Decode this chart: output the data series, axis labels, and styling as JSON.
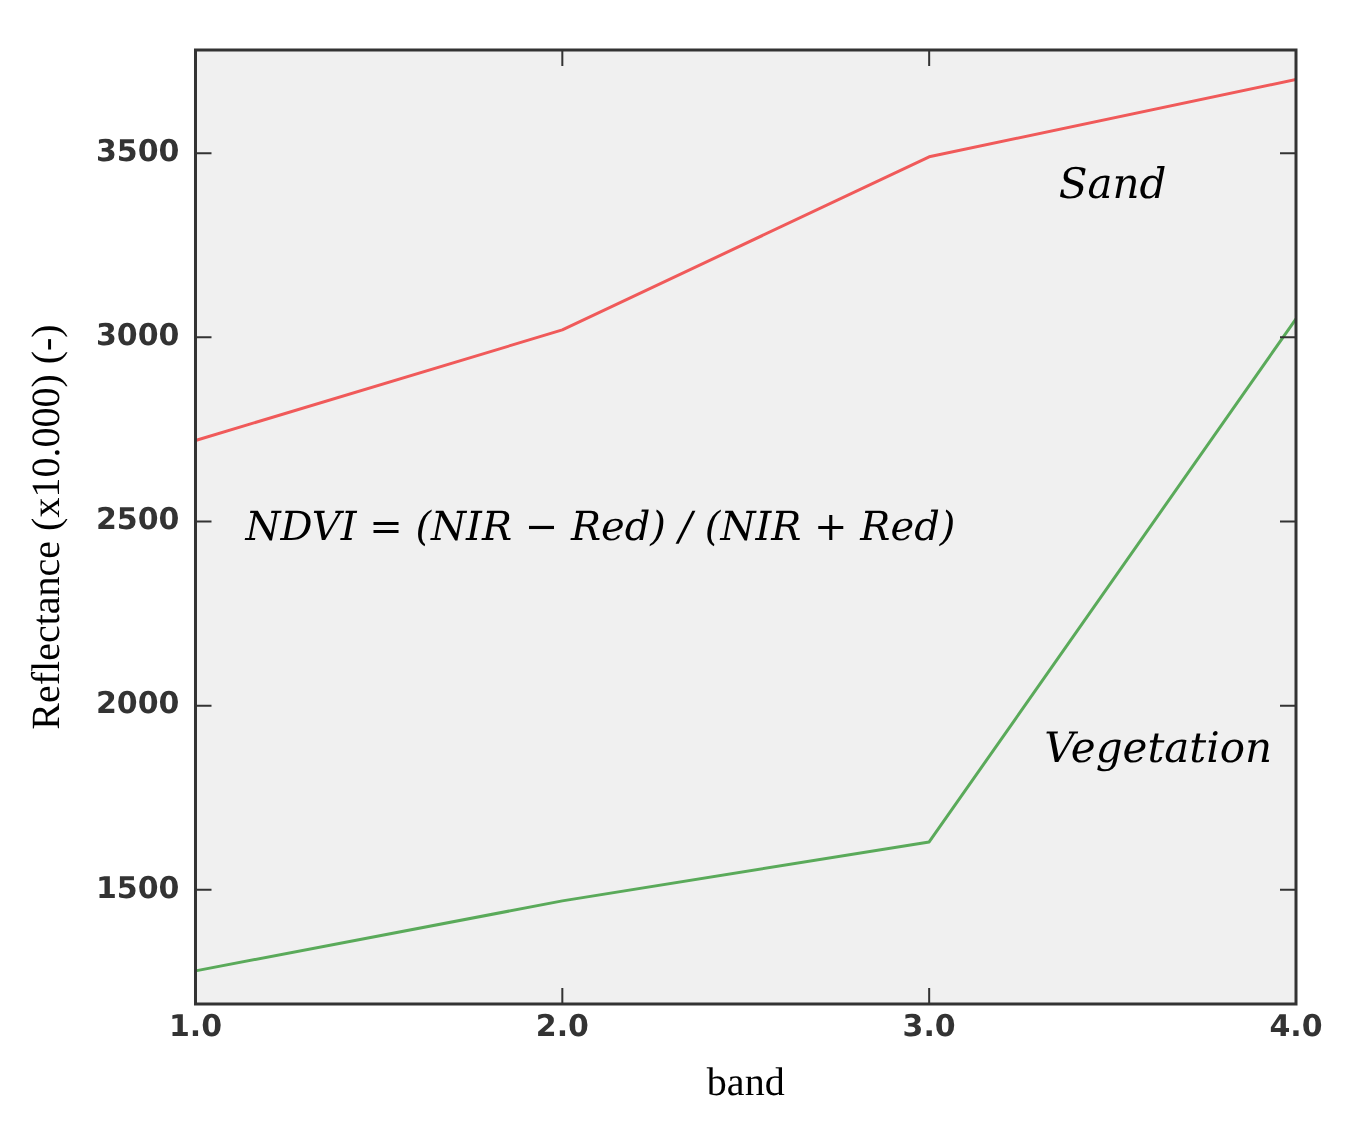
{
  "chart_data": {
    "type": "line",
    "xlabel": "band",
    "ylabel": "Reflectance (x10.000) (-)",
    "x": [
      1,
      2,
      3,
      4
    ],
    "series": [
      {
        "name": "Sand",
        "color": "#f05a5a",
        "values": [
          2720,
          3020,
          3490,
          3700
        ]
      },
      {
        "name": "Vegetation",
        "color": "#5aaa5a",
        "values": [
          1280,
          1470,
          1630,
          3050
        ]
      }
    ],
    "xlim": [
      1,
      4
    ],
    "xticks": [
      {
        "value": 1,
        "label": "1.0"
      },
      {
        "value": 2,
        "label": "2.0"
      },
      {
        "value": 3,
        "label": "3.0"
      },
      {
        "value": 4,
        "label": "4.0"
      }
    ],
    "ylim": [
      1190,
      3780
    ],
    "yticks": [
      1500,
      2000,
      2500,
      3000,
      3500
    ],
    "annotations": [
      "NDVI = (NIR − Red) / (NIR + Red)"
    ],
    "grid": false,
    "legend": false,
    "marker": "none",
    "line_style": "solid"
  }
}
